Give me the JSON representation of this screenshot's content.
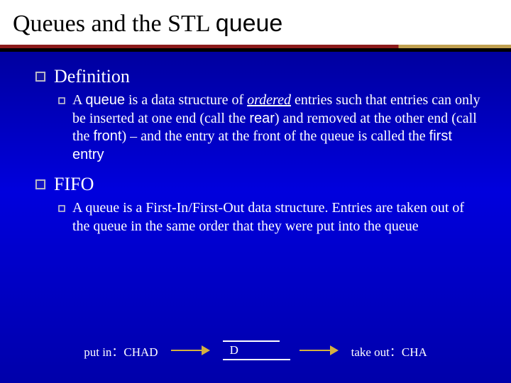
{
  "title": {
    "prefix": "Queues and the STL ",
    "mono": "queue"
  },
  "sections": [
    {
      "heading": "Definition",
      "body_parts": [
        {
          "t": "A ",
          "cls": ""
        },
        {
          "t": "queue",
          "cls": "sans"
        },
        {
          "t": " is a data structure of ",
          "cls": ""
        },
        {
          "t": "ordered",
          "cls": "ital underln"
        },
        {
          "t": " entries such that entries can only be inserted at one end (call the ",
          "cls": ""
        },
        {
          "t": "rear",
          "cls": "sans"
        },
        {
          "t": ") and removed at the other end (call the ",
          "cls": ""
        },
        {
          "t": "front",
          "cls": "sans"
        },
        {
          "t": ") – and the entry at the front of the queue is called the ",
          "cls": ""
        },
        {
          "t": "first entry",
          "cls": "sans"
        }
      ]
    },
    {
      "heading": "FIFO",
      "body_parts": [
        {
          "t": "A queue is a First-In/First-Out data structure. Entries are taken out of the queue in the same order that they were put into the queue",
          "cls": ""
        }
      ]
    }
  ],
  "footer": {
    "put_in": "put in：CHAD",
    "box_label": "D",
    "take_out": "take out：CHA"
  },
  "colors": {
    "bullet_outline": "#c8c8d0",
    "arrow": "#d4b040"
  }
}
